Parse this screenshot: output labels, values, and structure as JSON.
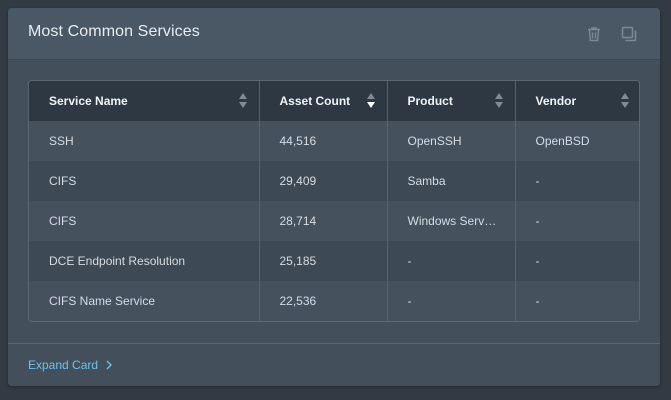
{
  "card": {
    "title": "Most Common Services",
    "actions": [
      {
        "icon": "trash-icon"
      },
      {
        "icon": "duplicate-icon"
      }
    ],
    "expand_label": "Expand Card"
  },
  "table": {
    "columns": [
      {
        "label": "Service Name",
        "sort": "none"
      },
      {
        "label": "Asset Count",
        "sort": "descending"
      },
      {
        "label": "Product",
        "sort": "none"
      },
      {
        "label": "Vendor",
        "sort": "none"
      }
    ],
    "rows": [
      [
        "SSH",
        "44,516",
        "OpenSSH",
        "OpenBSD"
      ],
      [
        "CIFS",
        "29,409",
        "Samba",
        "-"
      ],
      [
        "CIFS",
        "28,714",
        "Windows Serv…",
        "-"
      ],
      [
        "DCE Endpoint Resolution",
        "25,185",
        "-",
        "-"
      ],
      [
        "CIFS Name Service",
        "22,536",
        "-",
        "-"
      ]
    ]
  },
  "colors": {
    "background": "#323b44",
    "card": "#43505c",
    "header_row": "#2e3843",
    "link": "#6fc0e8"
  }
}
